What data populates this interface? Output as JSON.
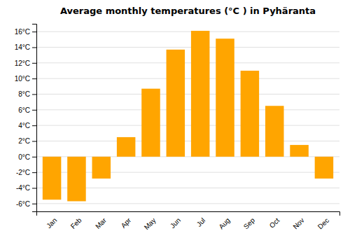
{
  "chart_data": {
    "type": "bar",
    "title": "Average monthly temperatures (°C ) in Pyhäranta",
    "categories": [
      "Jan",
      "Feb",
      "Mar",
      "Apr",
      "May",
      "Jun",
      "Jul",
      "Aug",
      "Sep",
      "Oct",
      "Nov",
      "Dec"
    ],
    "values": [
      -5.5,
      -5.7,
      -2.8,
      2.5,
      8.7,
      13.7,
      16.1,
      15.1,
      11.0,
      6.5,
      1.5,
      -2.8
    ],
    "color": "#FFA500",
    "ylim": [
      -7,
      17
    ],
    "yticks": [
      {
        "value": -6,
        "label": "-6°C"
      },
      {
        "value": -4,
        "label": "-4°C"
      },
      {
        "value": -2,
        "label": "-2°C"
      },
      {
        "value": 0,
        "label": "0°C"
      },
      {
        "value": 2,
        "label": "2°C"
      },
      {
        "value": 4,
        "label": "4°C"
      },
      {
        "value": 6,
        "label": "6°C"
      },
      {
        "value": 8,
        "label": "8°C"
      },
      {
        "value": 10,
        "label": "10°C"
      },
      {
        "value": 12,
        "label": "12°C"
      },
      {
        "value": 14,
        "label": "14°C"
      },
      {
        "value": 16,
        "label": "16°C"
      }
    ],
    "grid": true
  }
}
